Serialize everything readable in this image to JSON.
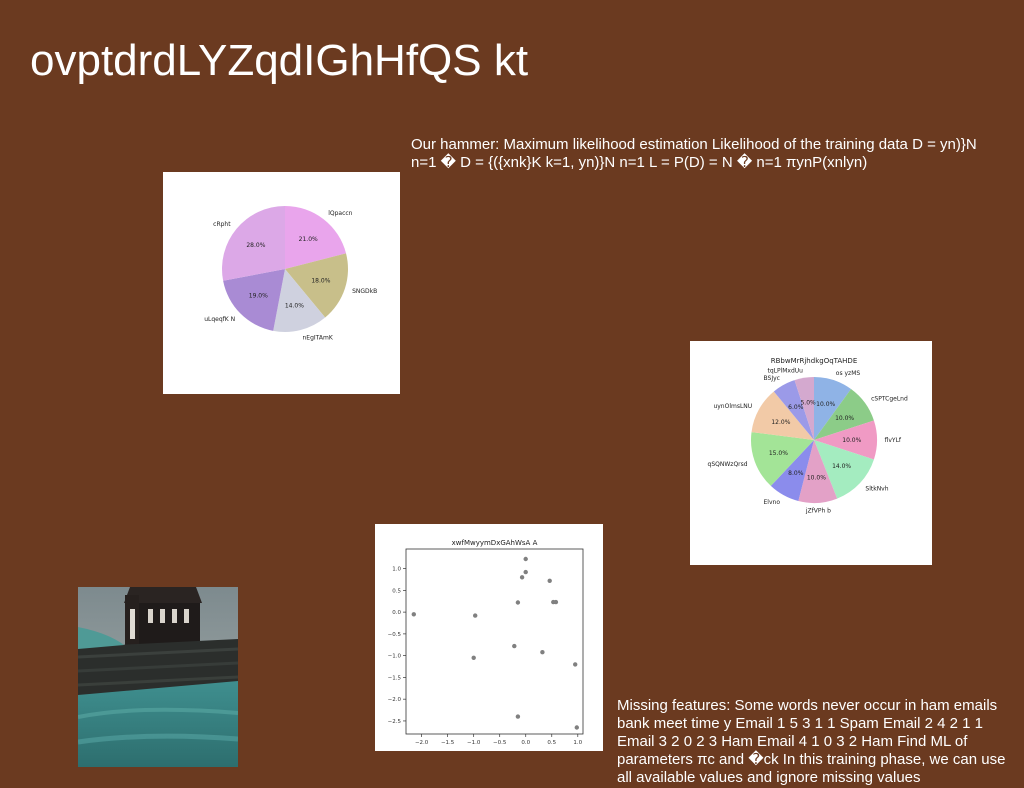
{
  "slide": {
    "title": "ovptdrdLYZqdIGhHfQS kt",
    "text_blocks": [
      "Our hammer: Maximum likelihood estimation Likelihood of the training data D = yn)}N n=1 � D = {({xnk}K k=1, yn)}N n=1 L = P(D) = N � n=1 πynP(xnlyn)",
      "Missing features: Some words never occur in ham emails bank meet time y Email 1 5 3 1 1 Spam Email 2 4 2 1 1 Email 3 2 0 2 3 Ham Email 4 1 0 3 2 Ham Find ML of parameters πc and �ck In this training phase, we can use all available values and ignore missing values"
    ],
    "photo": {
      "icon": "church-landscape-photo"
    }
  },
  "chart_data": [
    {
      "type": "pie",
      "title": "",
      "labels": [
        "lQpaccn",
        "SNGDkB",
        "nEgITAmK",
        "uLqeqfK N",
        "cRpht"
      ],
      "values": [
        21.0,
        18.0,
        14.0,
        19.0,
        28.0
      ],
      "pct_labels": [
        "21.0%",
        "18.0%",
        "14.0%",
        "19.0%",
        "28.0%"
      ],
      "colors": [
        "#e9a5ec",
        "#c8bf8a",
        "#cfd1df",
        "#a98bd4",
        "#dca8e7"
      ]
    },
    {
      "type": "pie",
      "title": "RBbwMrRjhdkgOqTAHDE",
      "labels": [
        "os yzMS",
        "cSPTCgeLnd",
        "flvYLf",
        "SltkNvh",
        "jZfVPh b",
        "Elvno",
        "qSQNWzQrsd",
        "uynOlmsLNU",
        "BSJyc",
        "tqLPlMxdUu"
      ],
      "values": [
        10.0,
        10.0,
        10.0,
        14.0,
        10.0,
        8.0,
        15.0,
        12.0,
        6.0,
        5.0
      ],
      "pct_labels": [
        "10.0%",
        "10.0%",
        "10.0%",
        "14.0%",
        "10.0%",
        "8.0%",
        "15.0%",
        "12.0%",
        "6.0%",
        "5.0%"
      ],
      "colors": [
        "#8fb3e6",
        "#8ccc88",
        "#f09ac4",
        "#a4ecc0",
        "#e3a1c7",
        "#8b8cec",
        "#a3e497",
        "#f2caa7",
        "#9b9ae8",
        "#d4a9cf"
      ]
    },
    {
      "type": "scatter",
      "title": "xwfMwyymDxGAhWsA A",
      "xlabel": "",
      "ylabel": "",
      "xlim": [
        -2.3,
        1.1
      ],
      "ylim": [
        -2.8,
        1.45
      ],
      "xticks": [
        -2.0,
        -1.5,
        -1.0,
        -0.5,
        0.0,
        0.5,
        1.0
      ],
      "xtick_labels": [
        "−2.0",
        "−1.5",
        "−1.0",
        "−0.5",
        "0.0",
        "0.5",
        "1.0"
      ],
      "yticks": [
        1.0,
        0.5,
        0.0,
        -0.5,
        -1.0,
        -1.5,
        -2.0,
        -2.5
      ],
      "ytick_labels": [
        "1.0",
        "0.5",
        "0.0",
        "−0.5",
        "−1.0",
        "−1.5",
        "−2.0",
        "−2.5"
      ],
      "points": [
        [
          -2.15,
          -0.05
        ],
        [
          -1.0,
          -1.05
        ],
        [
          -0.97,
          -0.08
        ],
        [
          -0.22,
          -0.78
        ],
        [
          -0.15,
          0.22
        ],
        [
          -0.15,
          -2.4
        ],
        [
          -0.07,
          0.8
        ],
        [
          0.0,
          1.22
        ],
        [
          0.0,
          0.92
        ],
        [
          0.32,
          -0.92
        ],
        [
          0.46,
          0.72
        ],
        [
          0.53,
          0.23
        ],
        [
          0.58,
          0.23
        ],
        [
          0.95,
          -1.2
        ],
        [
          0.98,
          -2.65
        ]
      ],
      "point_color": "#808080"
    }
  ]
}
